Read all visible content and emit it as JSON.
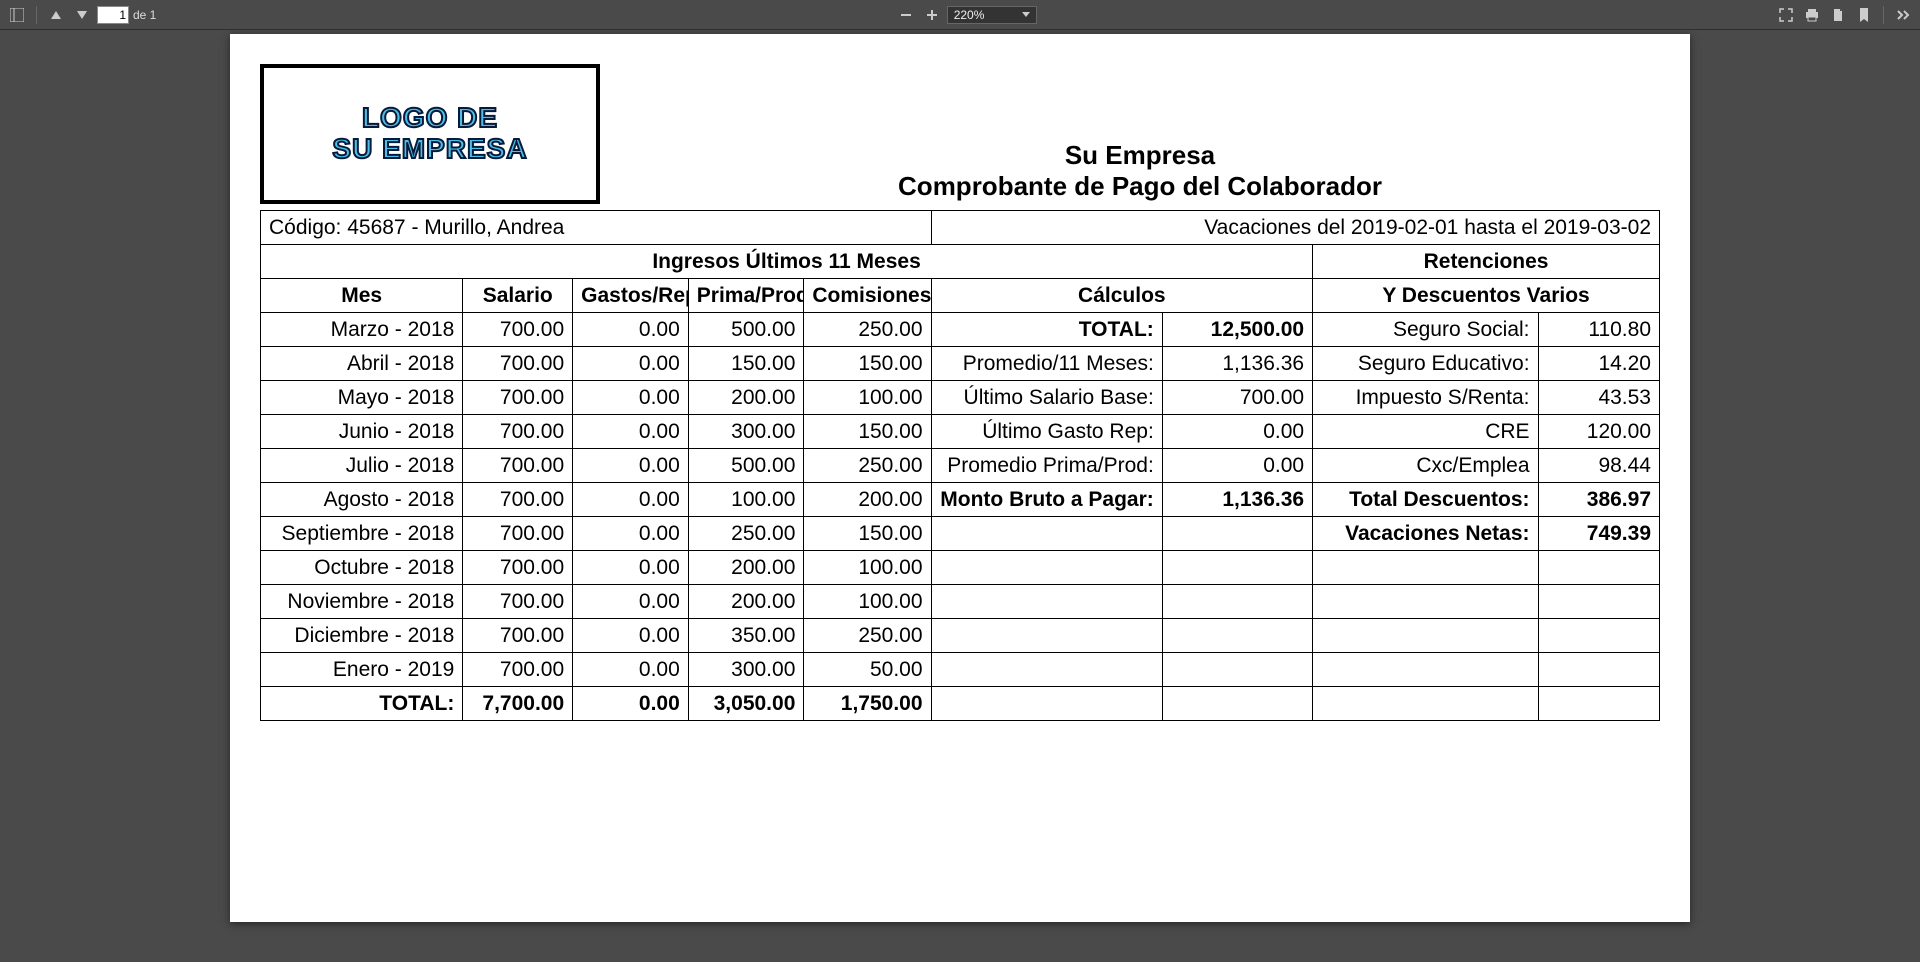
{
  "toolbar": {
    "page_current": "1",
    "page_sep": "de 1",
    "zoom_value": "220%"
  },
  "doc": {
    "logo_line1": "LOGO DE",
    "logo_line2": "SU EMPRESA",
    "company": "Su Empresa",
    "title": "Comprobante de Pago del Colaborador",
    "codigo": "Código: 45687 - Murillo, Andrea",
    "vacaciones": "Vacaciones del 2019-02-01 hasta el 2019-03-02",
    "section_ingresos": "Ingresos Últimos 11 Meses",
    "section_retenciones": "Retenciones",
    "subhdr_ydesc": "Y Descuentos Varios",
    "subhdr_calculos": "Cálculos",
    "cols": {
      "mes": "Mes",
      "salario": "Salario",
      "gastos": "Gastos/Rep",
      "prima": "Prima/Prod",
      "comisiones": "Comisiones"
    },
    "rows": [
      {
        "mes": "Marzo - 2018",
        "sal": "700.00",
        "gas": "0.00",
        "pri": "500.00",
        "com": "250.00"
      },
      {
        "mes": "Abril - 2018",
        "sal": "700.00",
        "gas": "0.00",
        "pri": "150.00",
        "com": "150.00"
      },
      {
        "mes": "Mayo - 2018",
        "sal": "700.00",
        "gas": "0.00",
        "pri": "200.00",
        "com": "100.00"
      },
      {
        "mes": "Junio - 2018",
        "sal": "700.00",
        "gas": "0.00",
        "pri": "300.00",
        "com": "150.00"
      },
      {
        "mes": "Julio - 2018",
        "sal": "700.00",
        "gas": "0.00",
        "pri": "500.00",
        "com": "250.00"
      },
      {
        "mes": "Agosto - 2018",
        "sal": "700.00",
        "gas": "0.00",
        "pri": "100.00",
        "com": "200.00"
      },
      {
        "mes": "Septiembre - 2018",
        "sal": "700.00",
        "gas": "0.00",
        "pri": "250.00",
        "com": "150.00"
      },
      {
        "mes": "Octubre - 2018",
        "sal": "700.00",
        "gas": "0.00",
        "pri": "200.00",
        "com": "100.00"
      },
      {
        "mes": "Noviembre - 2018",
        "sal": "700.00",
        "gas": "0.00",
        "pri": "200.00",
        "com": "100.00"
      },
      {
        "mes": "Diciembre - 2018",
        "sal": "700.00",
        "gas": "0.00",
        "pri": "350.00",
        "com": "250.00"
      },
      {
        "mes": "Enero - 2019",
        "sal": "700.00",
        "gas": "0.00",
        "pri": "300.00",
        "com": "50.00"
      }
    ],
    "totals_label": "TOTAL:",
    "totals": {
      "sal": "7,700.00",
      "gas": "0.00",
      "pri": "3,050.00",
      "com": "1,750.00"
    },
    "calc": [
      {
        "l": "TOTAL:",
        "v": "12,500.00",
        "b": true
      },
      {
        "l": "Promedio/11 Meses:",
        "v": "1,136.36"
      },
      {
        "l": "Último Salario Base:",
        "v": "700.00"
      },
      {
        "l": "Último Gasto Rep:",
        "v": "0.00"
      },
      {
        "l": "Promedio Prima/Prod:",
        "v": "0.00"
      },
      {
        "l": "Monto Bruto a Pagar:",
        "v": "1,136.36",
        "b": true
      }
    ],
    "ret": [
      {
        "l": "Seguro Social:",
        "v": "110.80"
      },
      {
        "l": "Seguro Educativo:",
        "v": "14.20"
      },
      {
        "l": "Impuesto S/Renta:",
        "v": "43.53"
      },
      {
        "l": "CRE",
        "v": "120.00"
      },
      {
        "l": "Cxc/Emplea",
        "v": "98.44"
      },
      {
        "l": "Total Descuentos:",
        "v": "386.97",
        "b": true
      },
      {
        "l": "Vacaciones Netas:",
        "v": "749.39",
        "b": true
      }
    ]
  }
}
